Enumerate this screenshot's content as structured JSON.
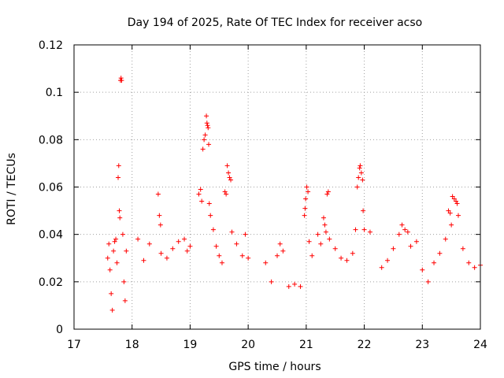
{
  "chart_data": {
    "type": "scatter",
    "title": "Day 194 of 2025, Rate Of TEC Index for receiver acso",
    "xlabel": "GPS time / hours",
    "ylabel": "ROTI / TECUs",
    "xlim": [
      17,
      24
    ],
    "ylim": [
      0,
      0.12
    ],
    "xticks": [
      "17",
      "18",
      "19",
      "20",
      "21",
      "22",
      "23",
      "24"
    ],
    "yticks": [
      "0",
      "0.02",
      "0.04",
      "0.06",
      "0.08",
      "0.1",
      "0.12"
    ],
    "grid": true,
    "marker": "+",
    "color": "#ff0000",
    "series": [
      {
        "name": "ROTI",
        "points": [
          [
            17.58,
            0.03
          ],
          [
            17.6,
            0.036
          ],
          [
            17.62,
            0.025
          ],
          [
            17.64,
            0.015
          ],
          [
            17.66,
            0.008
          ],
          [
            17.68,
            0.033
          ],
          [
            17.7,
            0.037
          ],
          [
            17.72,
            0.038
          ],
          [
            17.74,
            0.028
          ],
          [
            17.76,
            0.064
          ],
          [
            17.77,
            0.069
          ],
          [
            17.78,
            0.05
          ],
          [
            17.79,
            0.047
          ],
          [
            17.8,
            0.105
          ],
          [
            17.81,
            0.106
          ],
          [
            17.82,
            0.105
          ],
          [
            17.84,
            0.04
          ],
          [
            17.86,
            0.02
          ],
          [
            17.88,
            0.012
          ],
          [
            17.9,
            0.033
          ],
          [
            18.1,
            0.038
          ],
          [
            18.2,
            0.029
          ],
          [
            18.3,
            0.036
          ],
          [
            18.45,
            0.057
          ],
          [
            18.47,
            0.048
          ],
          [
            18.49,
            0.044
          ],
          [
            18.5,
            0.032
          ],
          [
            18.6,
            0.03
          ],
          [
            18.7,
            0.034
          ],
          [
            18.8,
            0.037
          ],
          [
            18.9,
            0.038
          ],
          [
            18.95,
            0.033
          ],
          [
            19.0,
            0.035
          ],
          [
            19.15,
            0.057
          ],
          [
            19.18,
            0.059
          ],
          [
            19.2,
            0.054
          ],
          [
            19.22,
            0.076
          ],
          [
            19.24,
            0.08
          ],
          [
            19.26,
            0.082
          ],
          [
            19.28,
            0.09
          ],
          [
            19.29,
            0.087
          ],
          [
            19.3,
            0.086
          ],
          [
            19.31,
            0.085
          ],
          [
            19.32,
            0.078
          ],
          [
            19.33,
            0.053
          ],
          [
            19.35,
            0.048
          ],
          [
            19.4,
            0.042
          ],
          [
            19.45,
            0.035
          ],
          [
            19.5,
            0.031
          ],
          [
            19.55,
            0.028
          ],
          [
            19.6,
            0.058
          ],
          [
            19.62,
            0.057
          ],
          [
            19.64,
            0.069
          ],
          [
            19.66,
            0.066
          ],
          [
            19.68,
            0.064
          ],
          [
            19.7,
            0.063
          ],
          [
            19.72,
            0.041
          ],
          [
            19.8,
            0.036
          ],
          [
            19.9,
            0.031
          ],
          [
            19.95,
            0.04
          ],
          [
            20.0,
            0.03
          ],
          [
            20.3,
            0.028
          ],
          [
            20.4,
            0.02
          ],
          [
            20.5,
            0.031
          ],
          [
            20.55,
            0.036
          ],
          [
            20.6,
            0.033
          ],
          [
            20.7,
            0.018
          ],
          [
            20.8,
            0.019
          ],
          [
            20.9,
            0.018
          ],
          [
            20.97,
            0.048
          ],
          [
            20.98,
            0.051
          ],
          [
            20.99,
            0.055
          ],
          [
            21.01,
            0.06
          ],
          [
            21.03,
            0.058
          ],
          [
            21.05,
            0.037
          ],
          [
            21.1,
            0.031
          ],
          [
            21.2,
            0.04
          ],
          [
            21.25,
            0.036
          ],
          [
            21.3,
            0.047
          ],
          [
            21.32,
            0.044
          ],
          [
            21.34,
            0.041
          ],
          [
            21.36,
            0.057
          ],
          [
            21.38,
            0.058
          ],
          [
            21.4,
            0.038
          ],
          [
            21.5,
            0.034
          ],
          [
            21.6,
            0.03
          ],
          [
            21.7,
            0.029
          ],
          [
            21.8,
            0.032
          ],
          [
            21.85,
            0.042
          ],
          [
            21.88,
            0.06
          ],
          [
            21.9,
            0.064
          ],
          [
            21.92,
            0.068
          ],
          [
            21.93,
            0.069
          ],
          [
            21.95,
            0.066
          ],
          [
            21.97,
            0.063
          ],
          [
            21.98,
            0.05
          ],
          [
            22.0,
            0.042
          ],
          [
            22.1,
            0.041
          ],
          [
            22.3,
            0.026
          ],
          [
            22.4,
            0.029
          ],
          [
            22.5,
            0.034
          ],
          [
            22.6,
            0.04
          ],
          [
            22.65,
            0.044
          ],
          [
            22.7,
            0.042
          ],
          [
            22.75,
            0.041
          ],
          [
            22.8,
            0.035
          ],
          [
            22.9,
            0.037
          ],
          [
            23.0,
            0.025
          ],
          [
            23.1,
            0.02
          ],
          [
            23.2,
            0.028
          ],
          [
            23.3,
            0.032
          ],
          [
            23.4,
            0.038
          ],
          [
            23.45,
            0.05
          ],
          [
            23.48,
            0.049
          ],
          [
            23.5,
            0.044
          ],
          [
            23.52,
            0.056
          ],
          [
            23.55,
            0.055
          ],
          [
            23.58,
            0.054
          ],
          [
            23.6,
            0.053
          ],
          [
            23.62,
            0.048
          ],
          [
            23.7,
            0.034
          ],
          [
            23.8,
            0.028
          ],
          [
            23.9,
            0.026
          ],
          [
            24.0,
            0.027
          ]
        ]
      }
    ]
  }
}
